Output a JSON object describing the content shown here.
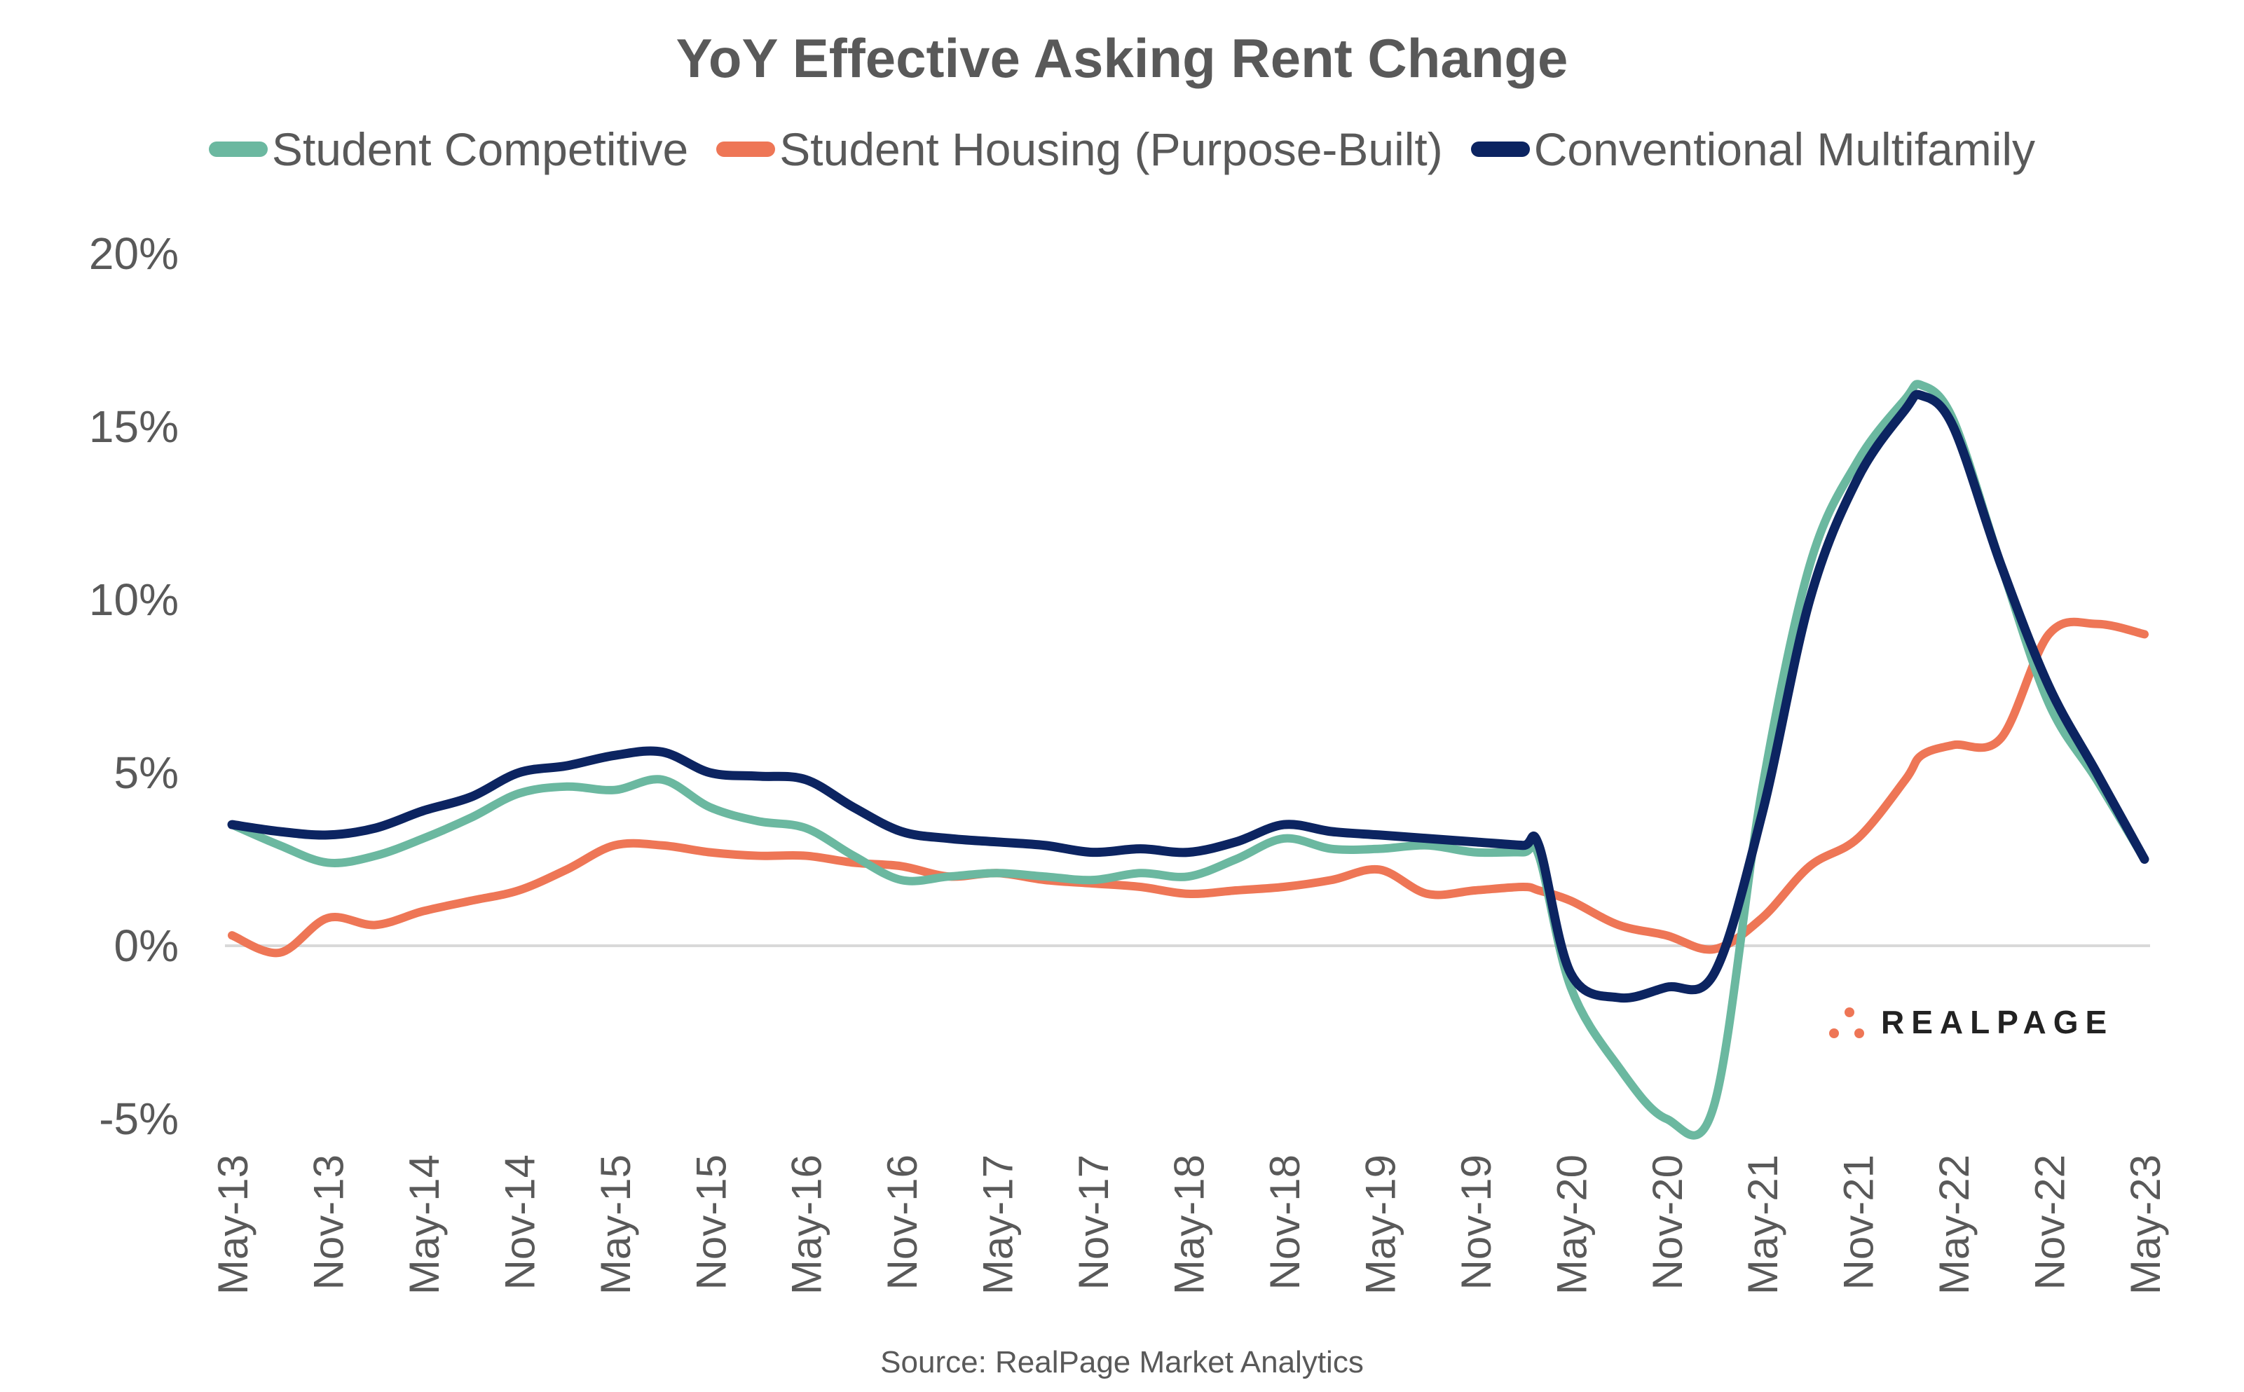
{
  "chart_data": {
    "type": "line",
    "title": "YoY Effective Asking Rent Change",
    "xlabel": "",
    "ylabel": "",
    "ylim": [
      -5,
      20
    ],
    "yticks": [
      -5,
      0,
      5,
      10,
      15,
      20
    ],
    "ytick_labels": [
      "-5%",
      "0%",
      "5%",
      "10%",
      "15%",
      "20%"
    ],
    "xtick_labels": [
      "May-13",
      "Nov-13",
      "May-14",
      "Nov-14",
      "May-15",
      "Nov-15",
      "May-16",
      "Nov-16",
      "May-17",
      "Nov-17",
      "May-18",
      "Nov-18",
      "May-19",
      "Nov-19",
      "May-20",
      "Nov-20",
      "May-21",
      "Nov-21",
      "May-22",
      "Nov-22",
      "May-23"
    ],
    "grid": false,
    "zero_line": true,
    "legend_position": "top",
    "x": [
      "May-13",
      "Aug-13",
      "Nov-13",
      "Feb-14",
      "May-14",
      "Aug-14",
      "Nov-14",
      "Feb-15",
      "May-15",
      "Aug-15",
      "Nov-15",
      "Feb-16",
      "May-16",
      "Aug-16",
      "Nov-16",
      "Feb-17",
      "May-17",
      "Aug-17",
      "Nov-17",
      "Feb-18",
      "May-18",
      "Aug-18",
      "Nov-18",
      "Feb-19",
      "May-19",
      "Aug-19",
      "Nov-19",
      "Feb-20",
      "Mar-20",
      "May-20",
      "Aug-20",
      "Nov-20",
      "Feb-21",
      "May-21",
      "Aug-21",
      "Nov-21",
      "Feb-22",
      "Mar-22",
      "May-22",
      "Aug-22",
      "Nov-22",
      "Feb-23",
      "May-23"
    ],
    "series": [
      {
        "name": "Student Competitive",
        "color": "#6bb8a0",
        "values": [
          3.5,
          2.9,
          2.4,
          2.6,
          3.1,
          3.7,
          4.4,
          4.6,
          4.5,
          4.8,
          4.0,
          3.6,
          3.4,
          2.6,
          1.9,
          2.0,
          2.1,
          2.0,
          1.9,
          2.1,
          2.0,
          2.5,
          3.1,
          2.8,
          2.8,
          2.9,
          2.7,
          2.7,
          2.6,
          -1.2,
          -3.5,
          -5.0,
          -4.6,
          4.5,
          11.0,
          14.0,
          15.8,
          16.2,
          15.2,
          11.0,
          7.0,
          4.8,
          2.5
        ]
      },
      {
        "name": "Student Housing (Purpose-Built)",
        "color": "#ee7656",
        "values": [
          0.3,
          -0.2,
          0.8,
          0.6,
          1.0,
          1.3,
          1.6,
          2.2,
          2.9,
          2.9,
          2.7,
          2.6,
          2.6,
          2.4,
          2.3,
          2.0,
          2.1,
          1.9,
          1.8,
          1.7,
          1.5,
          1.6,
          1.7,
          1.9,
          2.2,
          1.5,
          1.6,
          1.7,
          1.6,
          1.3,
          0.6,
          0.3,
          -0.1,
          0.8,
          2.3,
          3.1,
          4.8,
          5.5,
          5.8,
          6.0,
          9.0,
          9.3,
          9.0
        ]
      },
      {
        "name": "Conventional Multifamily",
        "color": "#0c2461",
        "values": [
          3.5,
          3.3,
          3.2,
          3.4,
          3.9,
          4.3,
          5.0,
          5.2,
          5.5,
          5.6,
          5.0,
          4.9,
          4.8,
          4.0,
          3.3,
          3.1,
          3.0,
          2.9,
          2.7,
          2.8,
          2.7,
          3.0,
          3.5,
          3.3,
          3.2,
          3.1,
          3.0,
          2.9,
          2.9,
          -0.8,
          -1.5,
          -1.2,
          -0.8,
          3.8,
          10.0,
          13.5,
          15.5,
          15.9,
          15.0,
          11.0,
          7.5,
          5.0,
          2.5
        ]
      }
    ]
  },
  "source": "Source: RealPage Market Analytics",
  "logo": {
    "text": "REALPAGE",
    "icon": "realpage-dots-icon"
  }
}
